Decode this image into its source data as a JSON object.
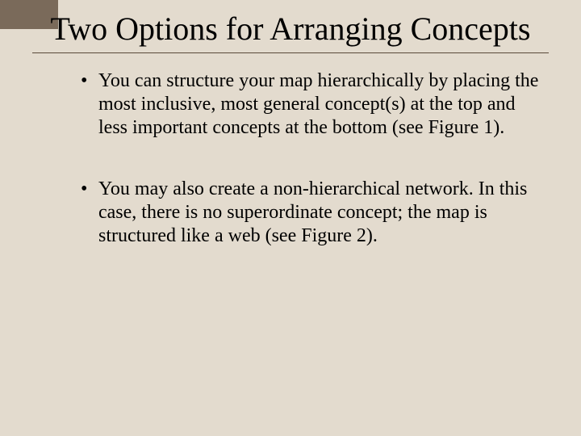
{
  "slide": {
    "background_color": "#e3dbce",
    "accent_color": "#7a6a5a",
    "rule_color": "#5a4a3a",
    "text_color": "#000000",
    "font_family": "Times New Roman",
    "title": "Two Options for Arranging Concepts",
    "title_fontsize": 40,
    "bullet_fontsize": 24,
    "bullets": [
      "You can structure your map hierarchically by placing the most inclusive, most general concept(s) at the top and less important concepts at the bottom (see Figure 1).",
      "You may also create a non-hierarchical network. In this case, there is no superordinate concept; the map is structured like a web (see Figure 2)."
    ]
  }
}
